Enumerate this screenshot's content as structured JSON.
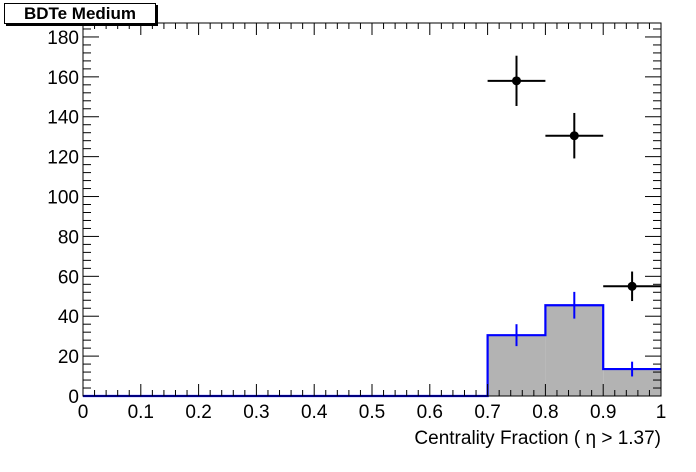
{
  "chart_data": {
    "type": "bar",
    "title": "BDTe Medium",
    "xlabel": "Centrality Fraction ( η > 1.37)",
    "ylabel": "",
    "xlim": [
      0,
      1
    ],
    "ylim": [
      0,
      187
    ],
    "x_ticks": [
      "0",
      "0.1",
      "0.2",
      "0.3",
      "0.4",
      "0.5",
      "0.6",
      "0.7",
      "0.8",
      "0.9",
      "1"
    ],
    "y_ticks": [
      "0",
      "20",
      "40",
      "60",
      "80",
      "100",
      "120",
      "140",
      "160",
      "180"
    ],
    "grid": false,
    "histogram": {
      "fill_color": "#b3b3b3",
      "line_color": "#0000ff",
      "bins": [
        {
          "low": 0.0,
          "high": 0.1,
          "value": 0,
          "error": 0
        },
        {
          "low": 0.1,
          "high": 0.2,
          "value": 0,
          "error": 0
        },
        {
          "low": 0.2,
          "high": 0.3,
          "value": 0,
          "error": 0
        },
        {
          "low": 0.3,
          "high": 0.4,
          "value": 0,
          "error": 0
        },
        {
          "low": 0.4,
          "high": 0.5,
          "value": 0,
          "error": 0
        },
        {
          "low": 0.5,
          "high": 0.6,
          "value": 0,
          "error": 0
        },
        {
          "low": 0.6,
          "high": 0.7,
          "value": 0,
          "error": 0
        },
        {
          "low": 0.7,
          "high": 0.8,
          "value": 30.5,
          "error": 5.5
        },
        {
          "low": 0.8,
          "high": 0.9,
          "value": 45.5,
          "error": 6.7
        },
        {
          "low": 0.9,
          "high": 1.0,
          "value": 13.5,
          "error": 3.7
        }
      ]
    },
    "data_points": {
      "color": "#000000",
      "points": [
        {
          "x": 0.75,
          "xerr": 0.05,
          "y": 158,
          "yerr": 12.6
        },
        {
          "x": 0.85,
          "xerr": 0.05,
          "y": 130.5,
          "yerr": 11.4
        },
        {
          "x": 0.95,
          "xerr": 0.05,
          "y": 55,
          "yerr": 7.4
        }
      ]
    }
  }
}
